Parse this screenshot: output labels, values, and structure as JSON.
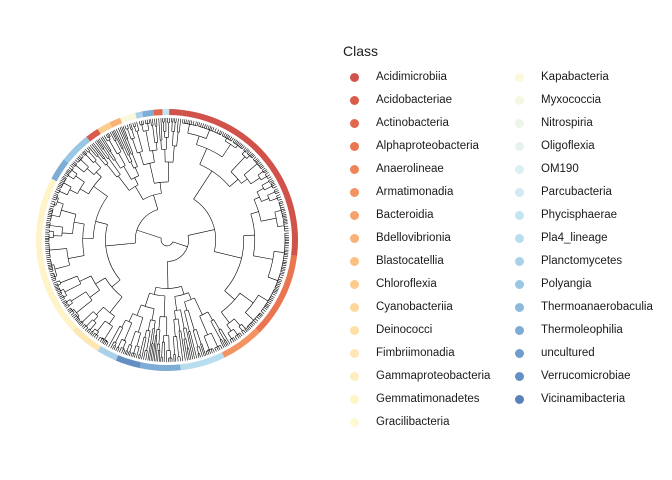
{
  "legend": {
    "title": "Class",
    "items": [
      {
        "label": "Acidimicrobiia",
        "color": "#D0524A"
      },
      {
        "label": "Acidobacteriae",
        "color": "#D95B4B"
      },
      {
        "label": "Actinobacteria",
        "color": "#E2684D"
      },
      {
        "label": "Alphaproteobacteria",
        "color": "#EA7651"
      },
      {
        "label": "Anaerolineae",
        "color": "#F08457"
      },
      {
        "label": "Armatimonadia",
        "color": "#F39361"
      },
      {
        "label": "Bacteroidia",
        "color": "#F6A26B"
      },
      {
        "label": "Bdellovibrionia",
        "color": "#F8B176"
      },
      {
        "label": "Blastocatellia",
        "color": "#FABF82"
      },
      {
        "label": "Chloroflexia",
        "color": "#FCCB8E"
      },
      {
        "label": "Cyanobacteriia",
        "color": "#FDD69A"
      },
      {
        "label": "Deinococci",
        "color": "#FEDFA6"
      },
      {
        "label": "Fimbriimonadia",
        "color": "#FEE7B2"
      },
      {
        "label": "Gammaproteobacteria",
        "color": "#FEEEBD"
      },
      {
        "label": "Gemmatimonadetes",
        "color": "#FEF4C8"
      },
      {
        "label": "Gracilibacteria",
        "color": "#FEF9D3"
      },
      {
        "label": "Kapabacteria",
        "color": "#FBF9DC"
      },
      {
        "label": "Myxococcia",
        "color": "#F5F7E2"
      },
      {
        "label": "Nitrospiria",
        "color": "#EEF5E8"
      },
      {
        "label": "Oligoflexia",
        "color": "#E6F2EE"
      },
      {
        "label": "OM190",
        "color": "#DCEFF2"
      },
      {
        "label": "Parcubacteria",
        "color": "#D1EAF3"
      },
      {
        "label": "Phycisphaerae",
        "color": "#C5E4F1"
      },
      {
        "label": "Pla4_lineage",
        "color": "#B8DDEE"
      },
      {
        "label": "Planctomycetes",
        "color": "#A9D2E9"
      },
      {
        "label": "Polyangia",
        "color": "#9AC7E3"
      },
      {
        "label": "Thermoanaerobaculia",
        "color": "#8BBADC"
      },
      {
        "label": "Thermoleophilia",
        "color": "#7DACD4"
      },
      {
        "label": "uncultured",
        "color": "#709DCB"
      },
      {
        "label": "Verrucomicrobiae",
        "color": "#648FC2"
      },
      {
        "label": "Vicinamibacteria",
        "color": "#5A82BA"
      }
    ]
  },
  "ring_segments": [
    {
      "class": "Acidimicrobiia",
      "start_deg": -83,
      "end_deg": 7
    },
    {
      "class": "Alphaproteobacteria",
      "start_deg": 7,
      "end_deg": 45
    },
    {
      "class": "Armatimonadia",
      "start_deg": 45,
      "end_deg": 64
    },
    {
      "class": "Pla4_lineage",
      "start_deg": 64,
      "end_deg": 84
    },
    {
      "class": "Thermoleophilia",
      "start_deg": 84,
      "end_deg": 102
    },
    {
      "class": "Verrucomicrobiae",
      "start_deg": 102,
      "end_deg": 113
    },
    {
      "class": "Planctomycetes",
      "start_deg": 113,
      "end_deg": 122
    },
    {
      "class": "Fimbriimonadia",
      "start_deg": 122,
      "end_deg": 136
    },
    {
      "class": "Gemmatimonadetes",
      "start_deg": 136,
      "end_deg": 208
    },
    {
      "class": "Thermoleophilia",
      "start_deg": 208,
      "end_deg": 218
    },
    {
      "class": "Polyangia",
      "start_deg": 218,
      "end_deg": 232
    },
    {
      "class": "Acidobacteriae",
      "start_deg": 232,
      "end_deg": 238
    },
    {
      "class": "Chloroflexia",
      "start_deg": 238,
      "end_deg": 244
    },
    {
      "class": "Bdellovibrionia",
      "start_deg": 244,
      "end_deg": 249
    },
    {
      "class": "Kapabacteria",
      "start_deg": 249,
      "end_deg": 256
    },
    {
      "class": "Planctomycetes",
      "start_deg": 256,
      "end_deg": 259
    },
    {
      "class": "Thermoleophilia",
      "start_deg": 259,
      "end_deg": 264
    },
    {
      "class": "Actinobacteria",
      "start_deg": 264,
      "end_deg": 268
    },
    {
      "class": "Phycisphaerae",
      "start_deg": 268,
      "end_deg": 271
    },
    {
      "class": "Acidimicrobiia",
      "start_deg": 271,
      "end_deg": 277
    }
  ]
}
